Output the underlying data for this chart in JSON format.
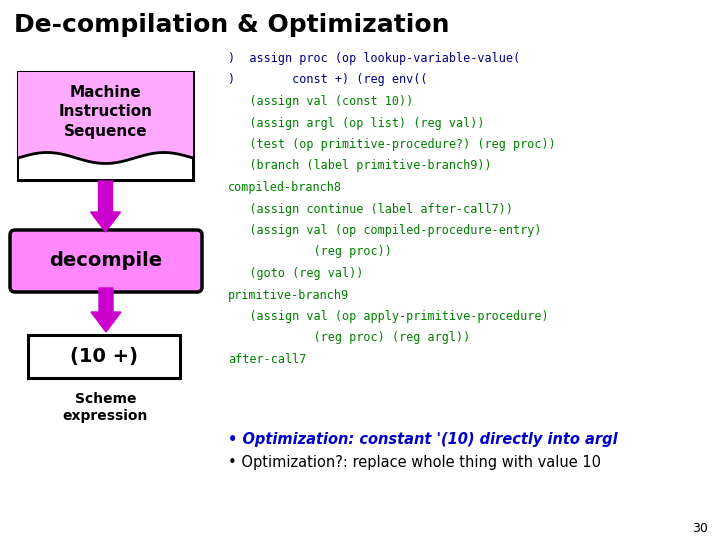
{
  "title": "De-compilation & Optimization",
  "title_fontsize": 18,
  "background_color": "#ffffff",
  "box1_text": "Machine\nInstruction\nSequence",
  "box1_color": "#ffaaff",
  "box1_border": "#000000",
  "box2_text": "decompile",
  "box2_color": "#ff88ff",
  "box2_border": "#000000",
  "box3_text": "(10 +)",
  "box3_color": "#ffffff",
  "box3_border": "#000000",
  "label_bottom": "Scheme\nexpression",
  "arrow_color": "#cc00cc",
  "code_lines": [
    [
      ")  assign proc (op lookup-variable-value(",
      "#000080"
    ],
    [
      ")        const +) (reg env((",
      "#000080"
    ],
    [
      "   (assign val (const 10))",
      "#008000"
    ],
    [
      "   (assign argl (op list) (reg val))",
      "#008000"
    ],
    [
      "   (test (op primitive-procedure?) (reg proc))",
      "#008000"
    ],
    [
      "   (branch (label primitive-branch9))",
      "#008000"
    ],
    [
      "compiled-branch8",
      "#008000"
    ],
    [
      "   (assign continue (label after-call7))",
      "#008000"
    ],
    [
      "   (assign val (op compiled-procedure-entry)",
      "#008000"
    ],
    [
      "            (reg proc))",
      "#008000"
    ],
    [
      "   (goto (reg val))",
      "#008000"
    ],
    [
      "primitive-branch9",
      "#008000"
    ],
    [
      "   (assign val (op apply-primitive-procedure)",
      "#008000"
    ],
    [
      "            (reg proc) (reg argl))",
      "#008000"
    ],
    [
      "after-call7",
      "#008000"
    ]
  ],
  "bullet1_text": "Optimization: constant '(10) directly into argl",
  "bullet1_color": "#0000cc",
  "bullet2_text": "Optimization?: replace whole thing with value 10",
  "bullet2_color": "#000000",
  "page_number": "30"
}
